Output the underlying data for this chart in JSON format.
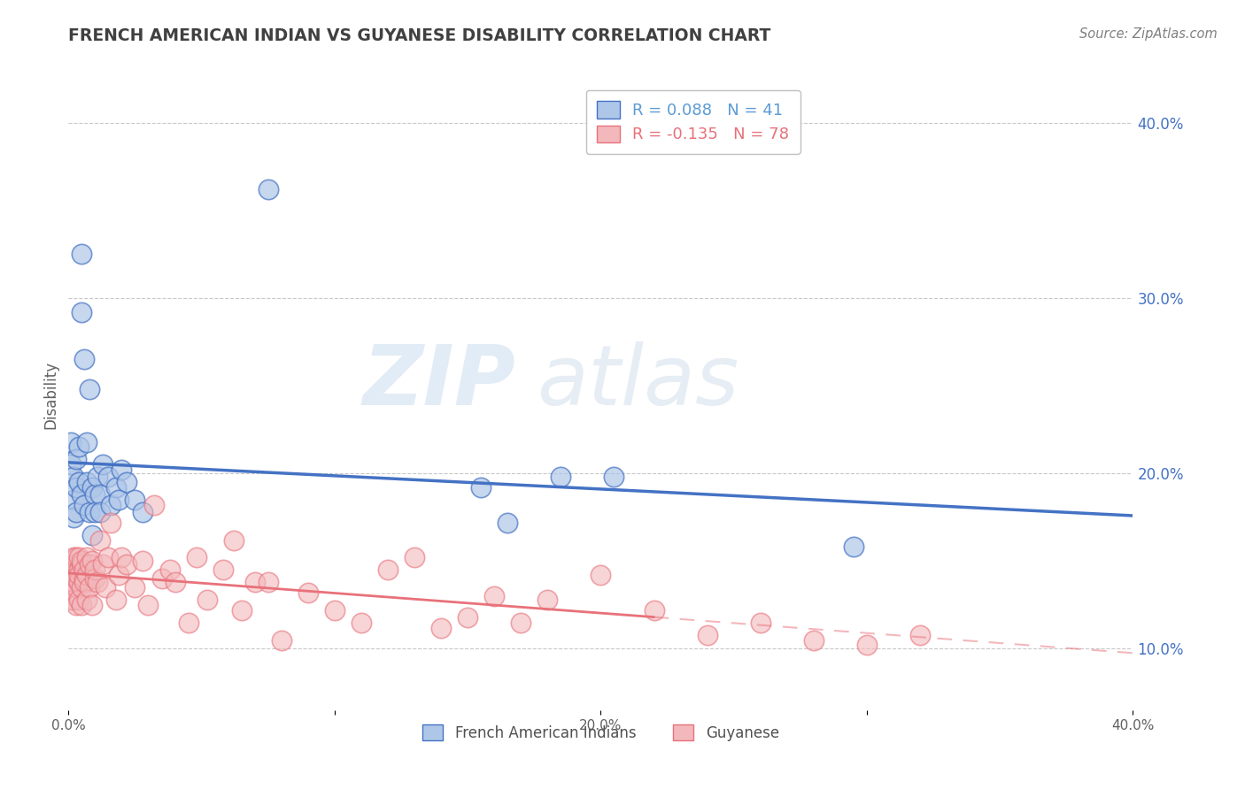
{
  "title": "FRENCH AMERICAN INDIAN VS GUYANESE DISABILITY CORRELATION CHART",
  "source": "Source: ZipAtlas.com",
  "ylabel": "Disability",
  "legend_labels": [
    "French American Indians",
    "Guyanese"
  ],
  "legend_r_n": [
    {
      "r": 0.088,
      "n": 41,
      "color": "#5b9bd5"
    },
    {
      "r": -0.135,
      "n": 78,
      "color": "#e8717a"
    }
  ],
  "blue_color": "#4472c4",
  "pink_color": "#e8717a",
  "blue_fill": "#aec6e8",
  "pink_fill": "#f2b8bc",
  "watermark_zip": "ZIP",
  "watermark_atlas": "atlas",
  "blue_points": [
    [
      0.001,
      0.205
    ],
    [
      0.001,
      0.218
    ],
    [
      0.002,
      0.185
    ],
    [
      0.002,
      0.198
    ],
    [
      0.002,
      0.175
    ],
    [
      0.003,
      0.192
    ],
    [
      0.003,
      0.208
    ],
    [
      0.003,
      0.178
    ],
    [
      0.004,
      0.215
    ],
    [
      0.004,
      0.195
    ],
    [
      0.005,
      0.325
    ],
    [
      0.005,
      0.292
    ],
    [
      0.005,
      0.188
    ],
    [
      0.006,
      0.265
    ],
    [
      0.006,
      0.182
    ],
    [
      0.007,
      0.218
    ],
    [
      0.007,
      0.195
    ],
    [
      0.008,
      0.248
    ],
    [
      0.008,
      0.178
    ],
    [
      0.009,
      0.192
    ],
    [
      0.009,
      0.165
    ],
    [
      0.01,
      0.188
    ],
    [
      0.01,
      0.178
    ],
    [
      0.011,
      0.198
    ],
    [
      0.012,
      0.188
    ],
    [
      0.012,
      0.178
    ],
    [
      0.013,
      0.205
    ],
    [
      0.015,
      0.198
    ],
    [
      0.016,
      0.182
    ],
    [
      0.018,
      0.192
    ],
    [
      0.019,
      0.185
    ],
    [
      0.02,
      0.202
    ],
    [
      0.022,
      0.195
    ],
    [
      0.025,
      0.185
    ],
    [
      0.028,
      0.178
    ],
    [
      0.075,
      0.362
    ],
    [
      0.155,
      0.192
    ],
    [
      0.165,
      0.172
    ],
    [
      0.185,
      0.198
    ],
    [
      0.205,
      0.198
    ],
    [
      0.295,
      0.158
    ]
  ],
  "pink_points": [
    [
      0.001,
      0.142
    ],
    [
      0.001,
      0.135
    ],
    [
      0.001,
      0.148
    ],
    [
      0.001,
      0.128
    ],
    [
      0.002,
      0.145
    ],
    [
      0.002,
      0.138
    ],
    [
      0.002,
      0.152
    ],
    [
      0.002,
      0.128
    ],
    [
      0.002,
      0.142
    ],
    [
      0.003,
      0.148
    ],
    [
      0.003,
      0.135
    ],
    [
      0.003,
      0.152
    ],
    [
      0.003,
      0.125
    ],
    [
      0.003,
      0.14
    ],
    [
      0.004,
      0.145
    ],
    [
      0.004,
      0.138
    ],
    [
      0.004,
      0.152
    ],
    [
      0.004,
      0.128
    ],
    [
      0.004,
      0.142
    ],
    [
      0.005,
      0.148
    ],
    [
      0.005,
      0.135
    ],
    [
      0.005,
      0.15
    ],
    [
      0.005,
      0.125
    ],
    [
      0.006,
      0.14
    ],
    [
      0.006,
      0.145
    ],
    [
      0.006,
      0.138
    ],
    [
      0.007,
      0.152
    ],
    [
      0.007,
      0.128
    ],
    [
      0.007,
      0.142
    ],
    [
      0.008,
      0.148
    ],
    [
      0.008,
      0.135
    ],
    [
      0.009,
      0.15
    ],
    [
      0.009,
      0.125
    ],
    [
      0.01,
      0.14
    ],
    [
      0.01,
      0.145
    ],
    [
      0.011,
      0.138
    ],
    [
      0.012,
      0.162
    ],
    [
      0.013,
      0.148
    ],
    [
      0.014,
      0.135
    ],
    [
      0.015,
      0.152
    ],
    [
      0.016,
      0.172
    ],
    [
      0.018,
      0.128
    ],
    [
      0.019,
      0.142
    ],
    [
      0.02,
      0.152
    ],
    [
      0.022,
      0.148
    ],
    [
      0.025,
      0.135
    ],
    [
      0.028,
      0.15
    ],
    [
      0.03,
      0.125
    ],
    [
      0.032,
      0.182
    ],
    [
      0.035,
      0.14
    ],
    [
      0.038,
      0.145
    ],
    [
      0.04,
      0.138
    ],
    [
      0.045,
      0.115
    ],
    [
      0.048,
      0.152
    ],
    [
      0.052,
      0.128
    ],
    [
      0.058,
      0.145
    ],
    [
      0.062,
      0.162
    ],
    [
      0.065,
      0.122
    ],
    [
      0.07,
      0.138
    ],
    [
      0.075,
      0.138
    ],
    [
      0.08,
      0.105
    ],
    [
      0.09,
      0.132
    ],
    [
      0.1,
      0.122
    ],
    [
      0.11,
      0.115
    ],
    [
      0.12,
      0.145
    ],
    [
      0.13,
      0.152
    ],
    [
      0.14,
      0.112
    ],
    [
      0.15,
      0.118
    ],
    [
      0.16,
      0.13
    ],
    [
      0.17,
      0.115
    ],
    [
      0.18,
      0.128
    ],
    [
      0.2,
      0.142
    ],
    [
      0.22,
      0.122
    ],
    [
      0.24,
      0.108
    ],
    [
      0.26,
      0.115
    ],
    [
      0.28,
      0.105
    ],
    [
      0.3,
      0.102
    ],
    [
      0.32,
      0.108
    ]
  ],
  "xlim": [
    0.0,
    0.4
  ],
  "ylim": [
    0.065,
    0.425
  ],
  "right_yticks": [
    0.1,
    0.2,
    0.3,
    0.4
  ],
  "right_ytick_labels": [
    "10.0%",
    "20.0%",
    "30.0%",
    "40.0%"
  ],
  "xticks": [
    0.0,
    0.1,
    0.2,
    0.3,
    0.4
  ],
  "xtick_labels": [
    "0.0%",
    "",
    "20.0%",
    "",
    "40.0%"
  ],
  "grid_color": "#c8c8c8",
  "bg_color": "#ffffff",
  "title_color": "#404040",
  "source_color": "#808080",
  "axis_label_color": "#4472c4"
}
